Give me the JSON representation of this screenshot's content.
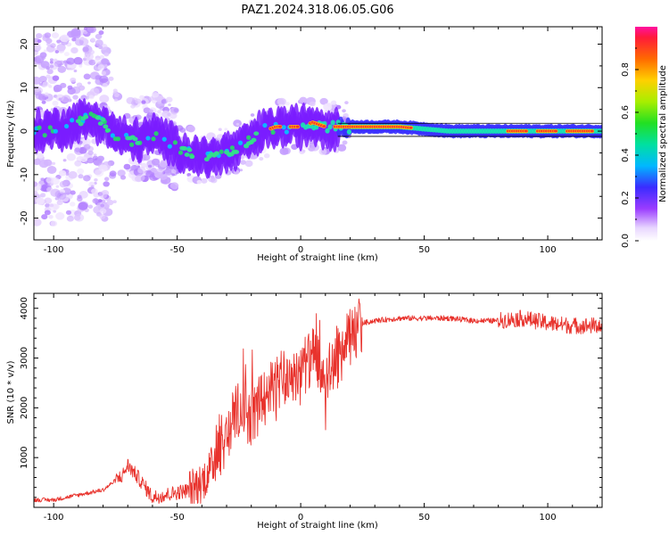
{
  "title": "PAZ1.2024.318.06.05.G06",
  "colors": {
    "trace_red": "#e8332d",
    "axis": "#000000",
    "spectrogram_ridge_hot": "#ff2d2d",
    "spectrogram_ridge_mid": "#33e08a",
    "spectrogram_ridge_low": "#7a1cff"
  },
  "chart_data": [
    {
      "type": "heatmap",
      "title": "PAZ1.2024.318.06.05.G06",
      "xlabel": "Height of straight line (km)",
      "ylabel": "Frequency (Hz)",
      "xlim": [
        -108,
        122
      ],
      "ylim": [
        -25,
        24
      ],
      "xticks": [
        -100,
        -50,
        0,
        50,
        100
      ],
      "yticks": [
        -20,
        -10,
        0,
        10,
        20
      ],
      "colorbar": {
        "label": "Normalized spectral amplitude",
        "range": [
          0.0,
          1.0
        ],
        "ticks": [
          "0.0",
          "0.2",
          "0.4",
          "0.6",
          "0.8"
        ]
      },
      "ridge": {
        "x": [
          -105,
          -95,
          -85,
          -80,
          -75,
          -70,
          -65,
          -60,
          -55,
          -50,
          -45,
          -40,
          -35,
          -30,
          -25,
          -20,
          -15,
          -10,
          -5,
          0,
          5,
          10,
          20,
          40,
          60,
          80,
          100,
          120
        ],
        "frequency": [
          0,
          1,
          3,
          2,
          -1,
          -2,
          -2,
          -1,
          -2,
          -4,
          -5,
          -6,
          -6,
          -5,
          -4,
          -2,
          0,
          1,
          1,
          1,
          2,
          1,
          1,
          1,
          0,
          0,
          0,
          0
        ]
      }
    },
    {
      "type": "line",
      "xlabel": "Height of straight line (km)",
      "ylabel": "SNR (10 * v/v)",
      "xlim": [
        -108,
        122
      ],
      "ylim": [
        0,
        4300
      ],
      "xticks": [
        -100,
        -50,
        0,
        50,
        100
      ],
      "yticks": [
        1000,
        2000,
        3000,
        4000
      ],
      "x": [
        -108,
        -100,
        -90,
        -80,
        -72,
        -70,
        -65,
        -60,
        -55,
        -50,
        -45,
        -40,
        -35,
        -30,
        -25,
        -20,
        -15,
        -10,
        -5,
        0,
        5,
        10,
        15,
        20,
        25,
        30,
        40,
        50,
        60,
        70,
        80,
        90,
        100,
        110,
        122
      ],
      "y": [
        150,
        150,
        250,
        350,
        650,
        850,
        550,
        200,
        250,
        300,
        350,
        500,
        900,
        1500,
        2000,
        1800,
        2200,
        2500,
        2600,
        2800,
        3000,
        2600,
        3000,
        3400,
        3700,
        3750,
        3800,
        3800,
        3800,
        3750,
        3750,
        3800,
        3700,
        3650,
        3650
      ]
    }
  ]
}
